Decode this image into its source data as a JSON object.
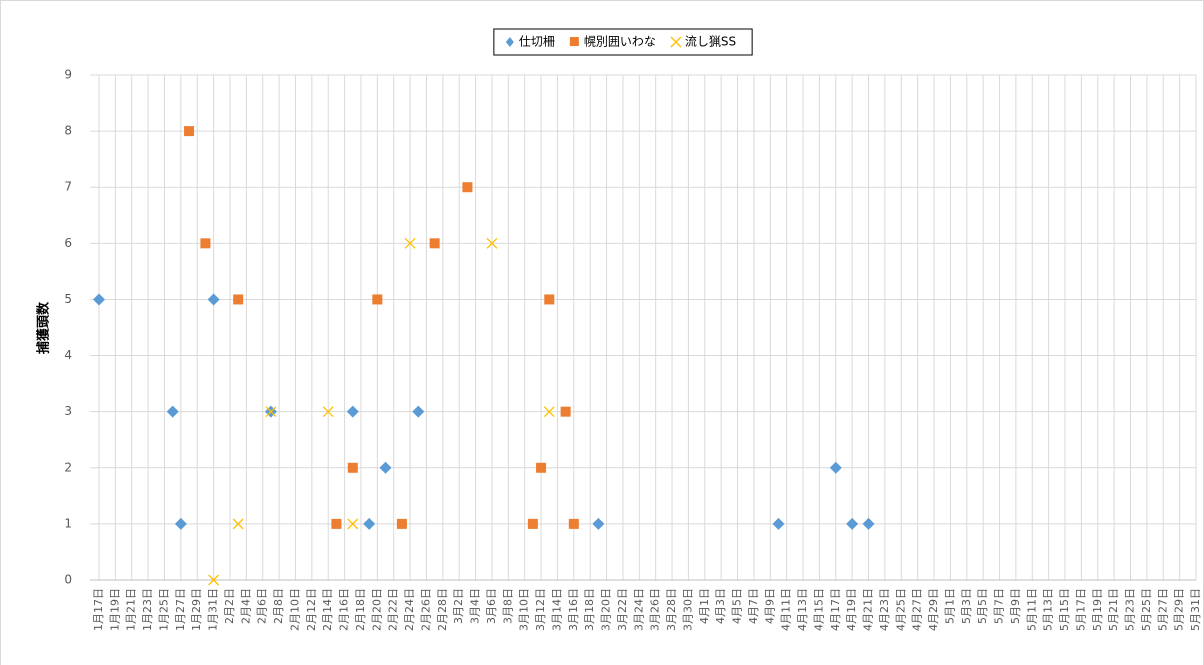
{
  "chart_data": {
    "type": "scatter",
    "y_label": "捕獲頭数",
    "categories": [
      "1月17日",
      "1月19日",
      "1月21日",
      "1月23日",
      "1月25日",
      "1月27日",
      "1月29日",
      "1月31日",
      "2月2日",
      "2月4日",
      "2月6日",
      "2月8日",
      "2月10日",
      "2月12日",
      "2月14日",
      "2月16日",
      "2月18日",
      "2月20日",
      "2月22日",
      "2月24日",
      "2月26日",
      "2月28日",
      "3月2日",
      "3月4日",
      "3月6日",
      "3月8日",
      "3月10日",
      "3月12日",
      "3月14日",
      "3月16日",
      "3月18日",
      "3月20日",
      "3月22日",
      "3月24日",
      "3月26日",
      "3月28日",
      "3月30日",
      "4月1日",
      "4月3日",
      "4月5日",
      "4月7日",
      "4月9日",
      "4月11日",
      "4月13日",
      "4月15日",
      "4月17日",
      "4月19日",
      "4月21日",
      "4月23日",
      "4月25日",
      "4月27日",
      "4月29日",
      "5月1日",
      "5月3日",
      "5月5日",
      "5月7日",
      "5月9日",
      "5月11日",
      "5月13日",
      "5月15日",
      "5月17日",
      "5月19日",
      "5月21日",
      "5月23日",
      "5月25日",
      "5月27日",
      "5月29日",
      "5月31日"
    ],
    "series": [
      {
        "name": "仕切柵",
        "color": "#5b9bd5",
        "marker": "diamond",
        "x": [
          "1月17日",
          "1月26日",
          "1月27日",
          "1月31日",
          "2月7日",
          "2月17日",
          "2月19日",
          "2月21日",
          "2月25日",
          "3月19日",
          "4月10日",
          "4月17日",
          "4月19日",
          "4月21日"
        ],
        "values": [
          5,
          3,
          1,
          5,
          3,
          3,
          1,
          2,
          3,
          1,
          1,
          2,
          1,
          1
        ]
      },
      {
        "name": "幌別囲いわな",
        "color": "#ed7d31",
        "marker": "square",
        "x": [
          "1月28日",
          "1月30日",
          "2月3日",
          "2月15日",
          "2月17日",
          "2月20日",
          "2月23日",
          "2月27日",
          "3月3日",
          "3月11日",
          "3月12日",
          "3月13日",
          "3月15日",
          "3月16日"
        ],
        "values": [
          8,
          6,
          5,
          1,
          2,
          5,
          1,
          6,
          7,
          1,
          2,
          5,
          3,
          1
        ]
      },
      {
        "name": "流し猟SS",
        "color": "#ffc000",
        "marker": "x",
        "x": [
          "1月31日",
          "2月3日",
          "2月7日",
          "2月14日",
          "2月17日",
          "2月24日",
          "3月6日",
          "3月13日"
        ],
        "values": [
          0,
          1,
          3,
          3,
          1,
          6,
          6,
          3
        ]
      }
    ],
    "ylim": [
      0,
      9
    ],
    "yticks": [
      0,
      1,
      2,
      3,
      4,
      5,
      6,
      7,
      8,
      9
    ],
    "grid": true,
    "legend": "top"
  }
}
